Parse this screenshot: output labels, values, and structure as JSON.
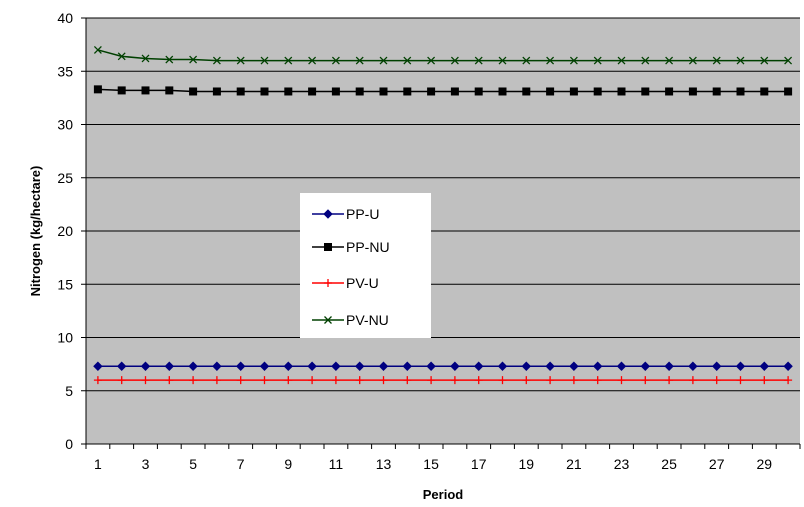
{
  "chart_data": {
    "type": "line",
    "title": "",
    "xlabel": "Period",
    "ylabel": "Nitrogen (kg/hectare)",
    "ylim": [
      0,
      40
    ],
    "yticks": [
      0,
      5,
      10,
      15,
      20,
      25,
      30,
      35,
      40
    ],
    "xlim": [
      0.5,
      30.5
    ],
    "xtick_labels": [
      "1",
      "3",
      "5",
      "7",
      "9",
      "11",
      "13",
      "15",
      "17",
      "19",
      "21",
      "23",
      "25",
      "27",
      "29"
    ],
    "grid": "horizontal",
    "plot_background": "#c0c0c0",
    "legend_placement": "center-left",
    "x": [
      1,
      2,
      3,
      4,
      5,
      6,
      7,
      8,
      9,
      10,
      11,
      12,
      13,
      14,
      15,
      16,
      17,
      18,
      19,
      20,
      21,
      22,
      23,
      24,
      25,
      26,
      27,
      28,
      29,
      30
    ],
    "series": [
      {
        "name": "PP-U",
        "color": "#000080",
        "marker": "diamond",
        "values": [
          7.3,
          7.3,
          7.3,
          7.3,
          7.3,
          7.3,
          7.3,
          7.3,
          7.3,
          7.3,
          7.3,
          7.3,
          7.3,
          7.3,
          7.3,
          7.3,
          7.3,
          7.3,
          7.3,
          7.3,
          7.3,
          7.3,
          7.3,
          7.3,
          7.3,
          7.3,
          7.3,
          7.3,
          7.3,
          7.3
        ]
      },
      {
        "name": "PP-NU",
        "color": "#000000",
        "marker": "square",
        "values": [
          33.3,
          33.2,
          33.2,
          33.2,
          33.1,
          33.1,
          33.1,
          33.1,
          33.1,
          33.1,
          33.1,
          33.1,
          33.1,
          33.1,
          33.1,
          33.1,
          33.1,
          33.1,
          33.1,
          33.1,
          33.1,
          33.1,
          33.1,
          33.1,
          33.1,
          33.1,
          33.1,
          33.1,
          33.1,
          33.1
        ]
      },
      {
        "name": "PV-U",
        "color": "#ff0000",
        "marker": "plus",
        "values": [
          6.0,
          6.0,
          6.0,
          6.0,
          6.0,
          6.0,
          6.0,
          6.0,
          6.0,
          6.0,
          6.0,
          6.0,
          6.0,
          6.0,
          6.0,
          6.0,
          6.0,
          6.0,
          6.0,
          6.0,
          6.0,
          6.0,
          6.0,
          6.0,
          6.0,
          6.0,
          6.0,
          6.0,
          6.0,
          6.0
        ]
      },
      {
        "name": "PV-NU",
        "color": "#004000",
        "marker": "x",
        "values": [
          37.0,
          36.4,
          36.2,
          36.1,
          36.1,
          36.0,
          36.0,
          36.0,
          36.0,
          36.0,
          36.0,
          36.0,
          36.0,
          36.0,
          36.0,
          36.0,
          36.0,
          36.0,
          36.0,
          36.0,
          36.0,
          36.0,
          36.0,
          36.0,
          36.0,
          36.0,
          36.0,
          36.0,
          36.0,
          36.0
        ]
      }
    ]
  }
}
